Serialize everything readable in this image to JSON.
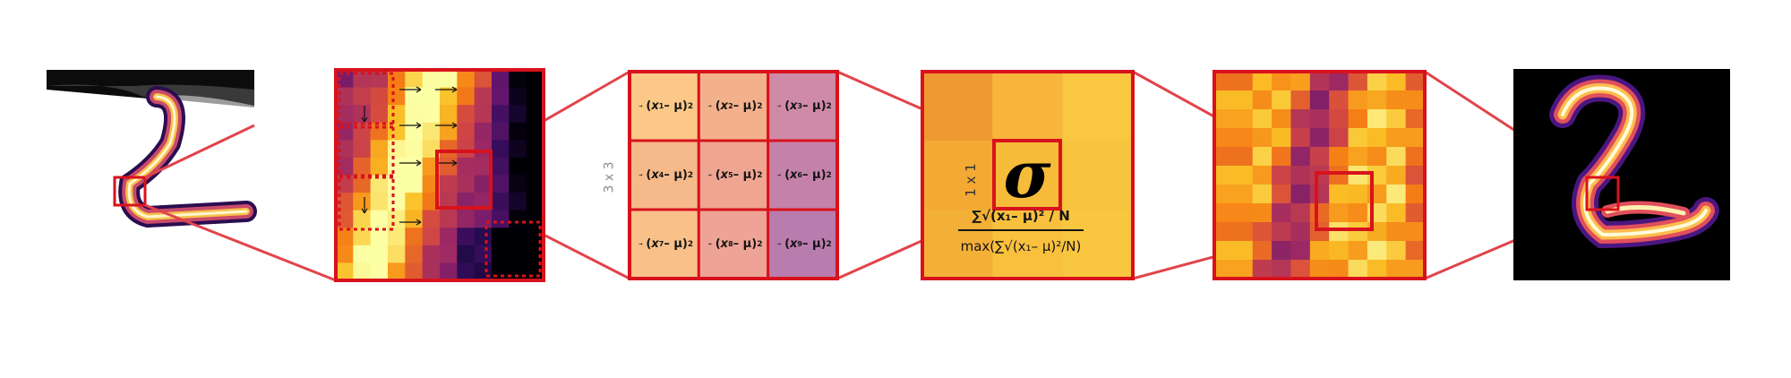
{
  "diagram": {
    "variance_terms": [
      {
        "var": "x",
        "sub": "1",
        "mu": "μ",
        "power": "2"
      },
      {
        "var": "x",
        "sub": "2",
        "mu": "μ",
        "power": "2"
      },
      {
        "var": "x",
        "sub": "3",
        "mu": "μ",
        "power": "2"
      },
      {
        "var": "x",
        "sub": "4",
        "mu": "μ",
        "power": "2"
      },
      {
        "var": "x",
        "sub": "5",
        "mu": "μ",
        "power": "2"
      },
      {
        "var": "x",
        "sub": "6",
        "mu": "μ",
        "power": "2"
      },
      {
        "var": "x",
        "sub": "7",
        "mu": "μ",
        "power": "2"
      },
      {
        "var": "x",
        "sub": "8",
        "mu": "μ",
        "power": "2"
      },
      {
        "var": "x",
        "sub": "9",
        "mu": "μ",
        "power": "2"
      }
    ],
    "kernel_label": "3 x 3",
    "pointwise_label": "1 x 1",
    "sigma_symbol": "σ",
    "formula_numerator": "∑√(x₁– μ)² / N",
    "formula_denominator": "max(∑√(x₁– μ)²/N)",
    "colors": {
      "frame": "#d8121c",
      "connector": "#e2434b",
      "cmap_low": "#000004",
      "cmap_mid": "#c0397a",
      "cmap_high": "#fcffa4"
    }
  }
}
